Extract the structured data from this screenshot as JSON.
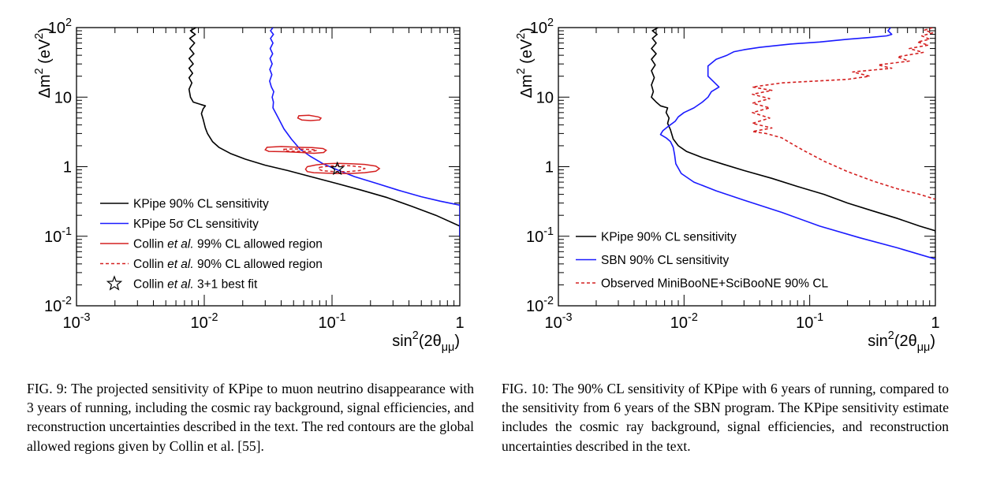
{
  "chart_data": [
    {
      "type": "line",
      "xscale": "log",
      "yscale": "log",
      "xlim": [
        0.001,
        1
      ],
      "ylim": [
        0.01,
        100
      ],
      "xlabel": "sin²(2θμμ)",
      "ylabel": "Δm² (eV²)",
      "xtick_labels": [
        "10⁻³",
        "10⁻²",
        "10⁻¹",
        "1"
      ],
      "ytick_labels": [
        "10⁻²",
        "10⁻¹",
        "1",
        "10",
        "10²"
      ],
      "legend_position": "bottom-left",
      "series": [
        {
          "name": "KPipe 90% CL sensitivity",
          "color": "#000000",
          "style": "solid",
          "x": [
            0.0086,
            0.0078,
            0.0085,
            0.0077,
            0.0084,
            0.0077,
            0.0083,
            0.0076,
            0.0082,
            0.0076,
            0.0081,
            0.0076,
            0.008,
            0.0076,
            0.0078,
            0.0082,
            0.0095,
            0.0102,
            0.0098,
            0.0095,
            0.0098,
            0.0102,
            0.0106,
            0.0116,
            0.013,
            0.016,
            0.021,
            0.03,
            0.045,
            0.07,
            0.11,
            0.17,
            0.27,
            0.42,
            0.65,
            1.0,
            1.0
          ],
          "y": [
            100,
            90,
            80,
            70,
            60,
            50,
            42,
            36,
            30,
            26,
            22,
            19,
            16,
            13,
            10,
            8.5,
            7.8,
            7.5,
            6.8,
            5.8,
            4.8,
            3.6,
            3.0,
            2.3,
            1.9,
            1.55,
            1.28,
            1.05,
            0.88,
            0.71,
            0.57,
            0.46,
            0.36,
            0.27,
            0.2,
            0.14,
            0.1
          ]
        },
        {
          "name": "KPipe 5σ CL sensitivity",
          "color": "#1a1aff",
          "style": "solid",
          "x": [
            0.0345,
            0.033,
            0.0348,
            0.033,
            0.0345,
            0.0328,
            0.0343,
            0.0327,
            0.034,
            0.0326,
            0.0338,
            0.0325,
            0.0335,
            0.035,
            0.034,
            0.0348,
            0.0345,
            0.038,
            0.042,
            0.048,
            0.056,
            0.068,
            0.085,
            0.11,
            0.15,
            0.22,
            0.33,
            0.5,
            0.7,
            1.0,
            1.0
          ],
          "y": [
            100,
            90,
            80,
            70,
            60,
            50,
            42,
            36,
            30,
            25,
            21,
            17,
            14,
            12,
            10,
            8.5,
            7.0,
            5.0,
            3.5,
            2.5,
            1.8,
            1.4,
            1.1,
            0.9,
            0.72,
            0.58,
            0.46,
            0.37,
            0.32,
            0.28,
            0.1
          ]
        },
        {
          "name": "Collin et al. 99% CL allowed region",
          "color": "#d42020",
          "style": "solid",
          "contours": [
            {
              "x": [
                0.055,
                0.066,
                0.078,
                0.082,
                0.08,
                0.068,
                0.058,
                0.054,
                0.055
              ],
              "y": [
                5.4,
                5.5,
                5.2,
                5.0,
                4.7,
                4.6,
                4.7,
                5.0,
                5.4
              ]
            },
            {
              "x": [
                0.031,
                0.04,
                0.055,
                0.07,
                0.085,
                0.09,
                0.086,
                0.072,
                0.058,
                0.043,
                0.032,
                0.03,
                0.031
              ],
              "y": [
                1.9,
                1.95,
                1.9,
                1.88,
                1.82,
                1.72,
                1.6,
                1.56,
                1.6,
                1.64,
                1.66,
                1.75,
                1.9
              ]
            },
            {
              "x": [
                0.064,
                0.075,
                0.09,
                0.11,
                0.14,
                0.18,
                0.22,
                0.235,
                0.22,
                0.18,
                0.14,
                0.11,
                0.088,
                0.072,
                0.064,
                0.062,
                0.064
              ],
              "y": [
                1.0,
                1.06,
                1.1,
                1.12,
                1.1,
                1.08,
                1.02,
                0.94,
                0.86,
                0.82,
                0.8,
                0.8,
                0.81,
                0.82,
                0.85,
                0.92,
                1.0
              ]
            }
          ]
        },
        {
          "name": "Collin et al. 90% CL allowed region",
          "color": "#d42020",
          "style": "dashed",
          "contours": [
            {
              "x": [
                0.042,
                0.05,
                0.06,
                0.07,
                0.076,
                0.07,
                0.058,
                0.047,
                0.042,
                0.042
              ],
              "y": [
                1.78,
                1.8,
                1.78,
                1.76,
                1.72,
                1.66,
                1.66,
                1.67,
                1.7,
                1.78
              ]
            },
            {
              "x": [
                0.08,
                0.095,
                0.115,
                0.14,
                0.17,
                0.18,
                0.165,
                0.135,
                0.105,
                0.085,
                0.078,
                0.08
              ],
              "y": [
                0.98,
                1.02,
                1.04,
                1.03,
                0.99,
                0.94,
                0.88,
                0.85,
                0.85,
                0.87,
                0.92,
                0.98
              ]
            }
          ]
        },
        {
          "name": "Collin et al. 3+1 best fit",
          "color": "#000000",
          "marker": "star",
          "x": [
            0.11
          ],
          "y": [
            0.93
          ]
        }
      ]
    },
    {
      "type": "line",
      "xscale": "log",
      "yscale": "log",
      "xlim": [
        0.001,
        1
      ],
      "ylim": [
        0.01,
        100
      ],
      "xlabel": "sin²(2θμμ)",
      "ylabel": "Δm² (eV²)",
      "xtick_labels": [
        "10⁻³",
        "10⁻²",
        "10⁻¹",
        "1"
      ],
      "ytick_labels": [
        "10⁻²",
        "10⁻¹",
        "1",
        "10",
        "10²"
      ],
      "legend_position": "bottom-left",
      "series": [
        {
          "name": "KPipe 90% CL sensitivity",
          "color": "#000000",
          "style": "solid",
          "x": [
            0.0062,
            0.0056,
            0.0061,
            0.0056,
            0.006,
            0.0055,
            0.006,
            0.0055,
            0.0059,
            0.0055,
            0.0058,
            0.0055,
            0.0057,
            0.0055,
            0.006,
            0.0065,
            0.0074,
            0.0072,
            0.0076,
            0.0074,
            0.0078,
            0.0082,
            0.009,
            0.0105,
            0.014,
            0.02,
            0.03,
            0.05,
            0.08,
            0.13,
            0.2,
            0.32,
            0.5,
            0.75,
            1.0,
            1.0
          ],
          "y": [
            100,
            90,
            80,
            70,
            60,
            50,
            42,
            35,
            29,
            24,
            19,
            15,
            12,
            10,
            8.5,
            7.5,
            7.0,
            6.0,
            5.0,
            4.2,
            3.4,
            2.5,
            2.0,
            1.65,
            1.35,
            1.1,
            0.88,
            0.68,
            0.52,
            0.4,
            0.3,
            0.23,
            0.18,
            0.14,
            0.12,
            0.11
          ]
        },
        {
          "name": "SBN 90% CL sensitivity",
          "color": "#1a1aff",
          "style": "solid",
          "x": [
            0.44,
            0.42,
            0.45,
            0.41,
            0.3,
            0.2,
            0.12,
            0.07,
            0.04,
            0.03,
            0.025,
            0.022,
            0.018,
            0.0155,
            0.0155,
            0.019,
            0.0165,
            0.0155,
            0.014,
            0.012,
            0.01,
            0.009,
            0.0085,
            0.0075,
            0.0068,
            0.0065,
            0.0072,
            0.0078,
            0.0082,
            0.0084,
            0.0086,
            0.0095,
            0.012,
            0.018,
            0.03,
            0.06,
            0.12,
            0.25,
            0.5,
            1.0
          ],
          "y": [
            100,
            90,
            80,
            76,
            72,
            68,
            62,
            58,
            52,
            48,
            45,
            40,
            35,
            28,
            20,
            14,
            12,
            10,
            8.5,
            7.0,
            6.0,
            5.2,
            4.5,
            3.8,
            3.3,
            2.9,
            2.6,
            2.3,
            1.9,
            1.5,
            1.1,
            0.8,
            0.6,
            0.45,
            0.33,
            0.22,
            0.14,
            0.095,
            0.068,
            0.047
          ]
        },
        {
          "name": "Observed MiniBooNE+SciBooNE 90% CL",
          "color": "#d42020",
          "style": "dashed",
          "x": [
            0.95,
            0.82,
            0.95,
            0.78,
            0.9,
            0.72,
            0.88,
            0.62,
            0.8,
            0.5,
            0.62,
            0.35,
            0.45,
            0.22,
            0.3,
            0.2,
            0.06,
            0.035,
            0.05,
            0.035,
            0.048,
            0.035,
            0.048,
            0.035,
            0.048,
            0.035,
            0.05,
            0.035,
            0.045,
            0.06,
            0.07,
            0.09,
            0.13,
            0.2,
            0.32,
            0.5,
            0.75,
            1.0
          ],
          "y": [
            100,
            92,
            84,
            76,
            68,
            62,
            56,
            50,
            44,
            38,
            33,
            29,
            26,
            23,
            20,
            18,
            16,
            14,
            12.5,
            11,
            9.5,
            8.2,
            7.0,
            6.0,
            5.0,
            4.2,
            3.6,
            3.2,
            3.0,
            2.6,
            2.2,
            1.7,
            1.2,
            0.85,
            0.62,
            0.48,
            0.4,
            0.34
          ]
        }
      ]
    }
  ],
  "captions": {
    "left": {
      "label": "FIG. 9:",
      "text": "The projected sensitivity of KPipe to muon neutrino disappearance with 3 years of running, including the cosmic ray background, signal efficiencies, and reconstruction uncertainties described in the text. The red contours are the global allowed regions given by Collin et al. [55]."
    },
    "right": {
      "label": "FIG. 10:",
      "text": "The 90% CL sensitivity of KPipe with 6 years of running, compared to the sensitivity from 6 years of the SBN program. The KPipe sensitivity estimate includes the cosmic ray background, signal efficiencies, and reconstruction uncertainties described in the text."
    }
  }
}
